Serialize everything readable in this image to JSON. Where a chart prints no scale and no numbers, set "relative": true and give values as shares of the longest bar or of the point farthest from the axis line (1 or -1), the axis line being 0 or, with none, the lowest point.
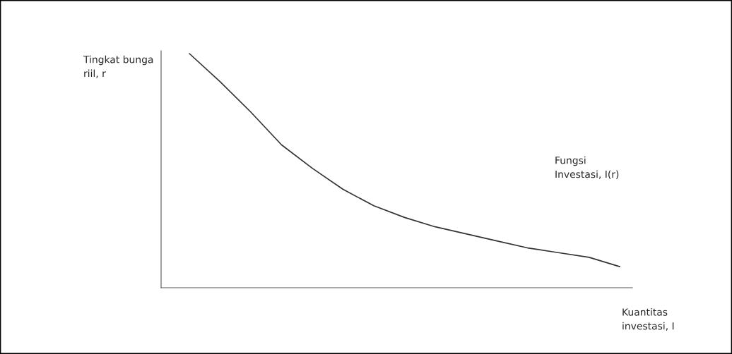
{
  "chart_data": {
    "type": "line",
    "relative": true,
    "color": "#333333",
    "categories": [
      null,
      null,
      null,
      null,
      null,
      null,
      null,
      null,
      null,
      null,
      null,
      null,
      null,
      null,
      null
    ],
    "values": [
      1,
      0.88,
      0.75,
      0.61,
      0.51,
      0.42,
      0.35,
      0.3,
      0.26,
      0.23,
      0.2,
      0.17,
      0.15,
      0.13,
      0.09
    ],
    "ylabel": "Tingkat bunga\nriil, r",
    "xlabel": "Kuantitas\ninvestasi, I",
    "annotations": [
      "Fungsi\nInvestasi, I(r)"
    ]
  }
}
